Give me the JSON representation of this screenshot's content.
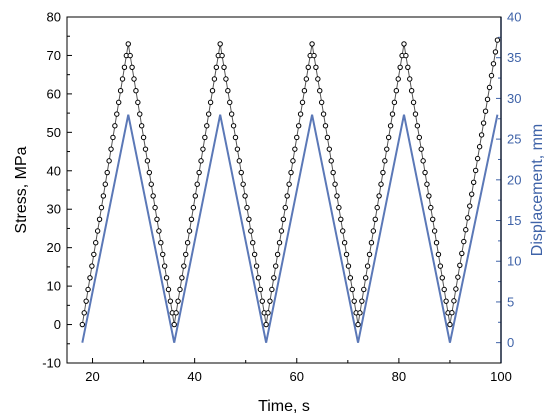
{
  "chart_data": {
    "type": "line",
    "xlabel": "Time, s",
    "ylabel_left": "Stress, MPa",
    "ylabel_right": "Displacement, mm",
    "xlim": [
      15,
      100
    ],
    "ylim_left": [
      -10,
      80
    ],
    "ylim_right": [
      -2.5,
      40
    ],
    "xticks": [
      20,
      40,
      60,
      80,
      100
    ],
    "yticks_left": [
      -10,
      0,
      10,
      20,
      30,
      40,
      50,
      60,
      70,
      80
    ],
    "yticks_right": [
      0,
      5,
      10,
      15,
      20,
      25,
      30,
      35,
      40
    ],
    "grid": false,
    "series": [
      {
        "axis": "left",
        "color": "#000000",
        "marker": "open-circle",
        "x": [
          18,
          27,
          36,
          45,
          54,
          63,
          72,
          81,
          90,
          99.3
        ],
        "y": [
          0,
          73,
          0,
          73,
          0,
          73,
          0,
          73,
          0,
          74
        ]
      },
      {
        "axis": "right",
        "color": "#5b78b7",
        "marker": "none",
        "x": [
          18,
          27,
          36,
          45,
          54,
          63,
          72,
          81,
          90,
          99.3
        ],
        "y": [
          0,
          28,
          0,
          28,
          0,
          28,
          0,
          28,
          0,
          28
        ]
      }
    ],
    "colors": {
      "left_axis": "#000000",
      "right_axis": "#3f63a8"
    }
  }
}
